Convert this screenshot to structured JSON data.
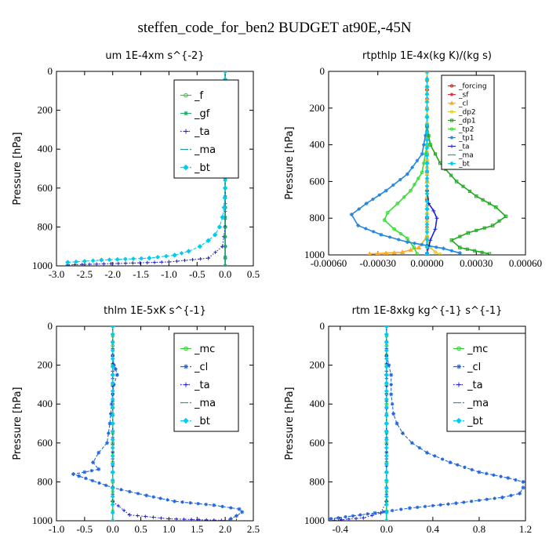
{
  "suptitle": "steffen_code_for_ben2  BUDGET at90E,-45N",
  "colors": {
    "f": "#33cc33",
    "gf": "#22aa66",
    "ta": "#2222cc",
    "ma": "#229999",
    "bt": "#00ccee",
    "mc": "#33cc33",
    "cl": "#2266dd",
    "forcing": "#dd2222",
    "sf": "#dd3333",
    "cl_rt": "#ffaa22",
    "dp2": "#ddcc22",
    "dp1": "#22aa22",
    "tp2": "#33dd33",
    "tp1": "#2288dd",
    "bt_rt": "#00ccee"
  },
  "chart_data": [
    {
      "type": "line",
      "title": "um   1E-4xm s^{-2}",
      "xlabel": "",
      "ylabel": "Pressure [hPa]",
      "xlim": [
        -3.0,
        0.5
      ],
      "ylim": [
        1000,
        0
      ],
      "xticks": [
        -3.0,
        -2.5,
        -2.0,
        -1.5,
        -1.0,
        -0.5,
        0.0,
        0.5
      ],
      "xtick_labels": [
        "-3.0",
        "-2.5",
        "-2.0",
        "-1.5",
        "-1.0",
        "-0.5",
        "0.0",
        "0.5"
      ],
      "yticks": [
        0,
        200,
        400,
        600,
        800,
        1000
      ],
      "ytick_labels": [
        "0",
        "200",
        "400",
        "600",
        "800",
        "1000"
      ],
      "legend": "top-right",
      "grid": false,
      "series": [
        {
          "name": "_f",
          "color": "f",
          "marker": "circle",
          "style": "solid",
          "x": [
            0,
            0,
            0,
            0,
            0,
            0,
            0,
            0,
            0,
            0,
            0,
            0
          ],
          "y": [
            0,
            100,
            200,
            300,
            400,
            500,
            600,
            700,
            800,
            900,
            960,
            1000
          ]
        },
        {
          "name": "_gf",
          "color": "gf",
          "marker": "star",
          "style": "solid",
          "x": [
            0,
            0,
            0,
            0,
            0,
            0,
            0,
            0,
            0,
            0,
            0,
            0
          ],
          "y": [
            0,
            100,
            200,
            300,
            400,
            500,
            600,
            700,
            800,
            900,
            960,
            1000
          ]
        },
        {
          "name": "_ta",
          "color": "ta",
          "marker": "plus",
          "style": "dotted",
          "x": [
            0,
            0,
            0,
            0,
            0,
            -0.05,
            -0.3,
            -1.0,
            -2.8
          ],
          "y": [
            0,
            200,
            400,
            600,
            800,
            900,
            960,
            980,
            995
          ]
        },
        {
          "name": "_ma",
          "color": "ma",
          "marker": "dash",
          "style": "dashed",
          "x": [
            0,
            0,
            0,
            0,
            0,
            0,
            0
          ],
          "y": [
            0,
            200,
            400,
            600,
            800,
            900,
            1000
          ]
        },
        {
          "name": "_bt",
          "color": "bt",
          "marker": "diamond",
          "style": "dashed",
          "x": [
            0,
            0,
            0,
            0,
            -0.02,
            -0.05,
            -0.1,
            -0.18,
            -0.3,
            -0.45,
            -0.65,
            -0.9,
            -1.35,
            -2.2,
            -2.8
          ],
          "y": [
            0,
            200,
            400,
            600,
            700,
            750,
            800,
            840,
            870,
            900,
            925,
            945,
            960,
            970,
            982
          ]
        }
      ]
    },
    {
      "type": "line",
      "title": "rtpthlp   1E-4x(kg K)/(kg s)",
      "xlabel": "",
      "ylabel": "Pressure [hPa]",
      "xlim": [
        -0.0006,
        0.0006
      ],
      "ylim": [
        1000,
        0
      ],
      "xticks": [
        -0.0006,
        -0.0003,
        0.0,
        0.0003,
        0.0006
      ],
      "xtick_labels": [
        "-0.00060",
        "-0.00030",
        "0.00000",
        "0.00030",
        "0.00060"
      ],
      "yticks": [
        0,
        200,
        400,
        600,
        800,
        1000
      ],
      "ytick_labels": [
        "0",
        "200",
        "400",
        "600",
        "800",
        "1000"
      ],
      "legend": "top-right",
      "grid": false,
      "series": [
        {
          "name": "_forcing",
          "color": "forcing",
          "marker": "circle",
          "style": "solid",
          "x": [
            0,
            0,
            0,
            0,
            0,
            0,
            0,
            0,
            0,
            0,
            0
          ],
          "y": [
            0,
            100,
            200,
            300,
            400,
            500,
            600,
            700,
            800,
            900,
            1000
          ]
        },
        {
          "name": "_sf",
          "color": "sf",
          "marker": "star",
          "style": "solid",
          "x": [
            0,
            0,
            0,
            0,
            0,
            0,
            0,
            0,
            0,
            0,
            0
          ],
          "y": [
            0,
            100,
            200,
            300,
            400,
            500,
            600,
            700,
            800,
            900,
            1000
          ]
        },
        {
          "name": "_cl",
          "color": "cl_rt",
          "marker": "triangle",
          "style": "solid",
          "x": [
            0,
            0,
            0,
            -5e-05,
            -0.00015,
            -0.00035
          ],
          "y": [
            0,
            600,
            900,
            960,
            985,
            995
          ]
        },
        {
          "name": "_dp2",
          "color": "dp2",
          "marker": "circle",
          "style": "solid",
          "x": [
            0,
            0,
            0,
            2e-05,
            5e-05,
            8e-05
          ],
          "y": [
            0,
            600,
            900,
            960,
            985,
            998
          ]
        },
        {
          "name": "_dp1",
          "color": "dp1",
          "marker": "square",
          "style": "solid",
          "x": [
            0,
            2e-05,
            8e-05,
            0.00018,
            0.0003,
            0.00042,
            0.00048,
            0.0004,
            0.00025,
            0.00015,
            0.0002,
            0.00038
          ],
          "y": [
            300,
            400,
            500,
            600,
            680,
            740,
            790,
            840,
            880,
            920,
            960,
            995
          ]
        },
        {
          "name": "_tp2",
          "color": "tp2",
          "marker": "circle",
          "style": "solid",
          "x": [
            0,
            -3e-05,
            -0.0001,
            -0.00018,
            -0.00024,
            -0.00026,
            -0.0002,
            -0.00012,
            -8e-05,
            -6e-05
          ],
          "y": [
            400,
            550,
            650,
            720,
            770,
            810,
            860,
            910,
            960,
            995
          ]
        },
        {
          "name": "_tp1",
          "color": "tp1",
          "marker": "star",
          "style": "solid",
          "x": [
            0,
            -3e-05,
            -0.00012,
            -0.00025,
            -0.00037,
            -0.00046,
            -0.00042,
            -0.00028,
            -0.00012,
            0.0001,
            0.0002
          ],
          "y": [
            300,
            450,
            560,
            650,
            720,
            780,
            840,
            890,
            930,
            965,
            990
          ]
        },
        {
          "name": "_ta",
          "color": "ta",
          "marker": "plus",
          "style": "solid",
          "x": [
            0,
            1e-05,
            4e-05,
            6e-05,
            5e-05,
            2e-05,
            0
          ],
          "y": [
            650,
            720,
            760,
            800,
            860,
            920,
            990
          ]
        },
        {
          "name": "_ma",
          "color": "ma",
          "marker": "dash",
          "style": "dashed",
          "x": [
            0,
            0,
            0,
            0,
            0
          ],
          "y": [
            0,
            250,
            500,
            750,
            1000
          ]
        },
        {
          "name": "_bt",
          "color": "bt_rt",
          "marker": "diamond",
          "style": "dashed",
          "x": [
            0,
            0,
            0,
            0,
            0
          ],
          "y": [
            0,
            250,
            500,
            750,
            1000
          ]
        }
      ]
    },
    {
      "type": "line",
      "title": "thlm   1E-5xK s^{-1}",
      "xlabel": "",
      "ylabel": "Pressure [hPa]",
      "xlim": [
        -1.0,
        2.5
      ],
      "ylim": [
        1000,
        0
      ],
      "xticks": [
        -1.0,
        -0.5,
        0.0,
        0.5,
        1.0,
        1.5,
        2.0,
        2.5
      ],
      "xtick_labels": [
        "-1.0",
        "-0.5",
        "0.0",
        "0.5",
        "1.0",
        "1.5",
        "2.0",
        "2.5"
      ],
      "yticks": [
        0,
        200,
        400,
        600,
        800,
        1000
      ],
      "ytick_labels": [
        "0",
        "200",
        "400",
        "600",
        "800",
        "1000"
      ],
      "legend": "top-right",
      "grid": false,
      "series": [
        {
          "name": "_mc",
          "color": "mc",
          "marker": "circle",
          "style": "solid",
          "x": [
            0,
            0,
            0,
            0,
            0,
            0,
            0,
            0,
            0,
            0,
            0
          ],
          "y": [
            0,
            100,
            200,
            300,
            400,
            500,
            600,
            700,
            800,
            900,
            1000
          ]
        },
        {
          "name": "_cl",
          "color": "cl",
          "marker": "star",
          "style": "dashed",
          "x": [
            0,
            0.02,
            0.05,
            0.08,
            0.02,
            -0.02,
            -0.05,
            -0.1,
            -0.25,
            -0.35,
            -0.25,
            -0.5,
            -0.7,
            -0.6,
            0,
            0.6,
            1.1,
            1.8,
            2.25,
            2.3,
            2.2,
            2.1
          ],
          "y": [
            150,
            200,
            220,
            250,
            300,
            400,
            500,
            600,
            650,
            700,
            735,
            750,
            760,
            770,
            830,
            870,
            900,
            920,
            940,
            955,
            975,
            990
          ]
        },
        {
          "name": "_ta",
          "color": "ta",
          "marker": "plus",
          "style": "dotted",
          "x": [
            0,
            0,
            0,
            0.3,
            1.0,
            2.2
          ],
          "y": [
            0,
            500,
            900,
            970,
            990,
            1000
          ]
        },
        {
          "name": "_ma",
          "color": "ma",
          "marker": "dash",
          "style": "dashed",
          "x": [
            0,
            0,
            0,
            0,
            0
          ],
          "y": [
            0,
            250,
            500,
            750,
            1000
          ]
        },
        {
          "name": "_bt",
          "color": "bt",
          "marker": "diamond",
          "style": "dashed",
          "x": [
            0,
            0,
            0,
            0,
            0
          ],
          "y": [
            0,
            250,
            500,
            750,
            1000
          ]
        }
      ]
    },
    {
      "type": "line",
      "title": "rtm   1E-8xkg kg^{-1} s^{-1}",
      "xlabel": "",
      "ylabel": "Pressure [hPa]",
      "xlim": [
        -0.5,
        1.2
      ],
      "ylim": [
        1000,
        0
      ],
      "xticks": [
        -0.4,
        0.0,
        0.4,
        0.8,
        1.2
      ],
      "xtick_labels": [
        "-0.4",
        "0.0",
        "0.4",
        "0.8",
        "1.2"
      ],
      "yticks": [
        0,
        200,
        400,
        600,
        800,
        1000
      ],
      "ytick_labels": [
        "0",
        "200",
        "400",
        "600",
        "800",
        "1000"
      ],
      "legend": "top-right",
      "grid": false,
      "series": [
        {
          "name": "_mc",
          "color": "mc",
          "marker": "circle",
          "style": "solid",
          "x": [
            0,
            0,
            0,
            0,
            0,
            0,
            0,
            0,
            0,
            0,
            0
          ],
          "y": [
            0,
            100,
            200,
            300,
            400,
            500,
            600,
            700,
            800,
            900,
            1000
          ]
        },
        {
          "name": "_cl",
          "color": "cl",
          "marker": "star",
          "style": "dashed",
          "x": [
            0,
            0.02,
            0.04,
            0.04,
            0.06,
            0.09,
            0.14,
            0.22,
            0.35,
            0.55,
            0.8,
            1.05,
            1.18,
            1.18,
            1.15,
            1.0,
            0.6,
            0.2,
            -0.1,
            -0.48
          ],
          "y": [
            150,
            200,
            250,
            350,
            450,
            500,
            550,
            600,
            650,
            700,
            750,
            780,
            800,
            830,
            860,
            880,
            910,
            935,
            960,
            990
          ]
        },
        {
          "name": "_ta",
          "color": "ta",
          "marker": "plus",
          "style": "dotted",
          "x": [
            0,
            0,
            0,
            -0.05,
            -0.2,
            -0.45
          ],
          "y": [
            0,
            500,
            900,
            960,
            985,
            998
          ]
        },
        {
          "name": "_ma",
          "color": "ma",
          "marker": "dash",
          "style": "dashed",
          "x": [
            0,
            0,
            0,
            0,
            0
          ],
          "y": [
            0,
            250,
            500,
            750,
            1000
          ]
        },
        {
          "name": "_bt",
          "color": "bt",
          "marker": "diamond",
          "style": "dashed",
          "x": [
            0,
            0,
            0,
            0,
            0
          ],
          "y": [
            0,
            250,
            500,
            750,
            1000
          ]
        }
      ]
    }
  ]
}
